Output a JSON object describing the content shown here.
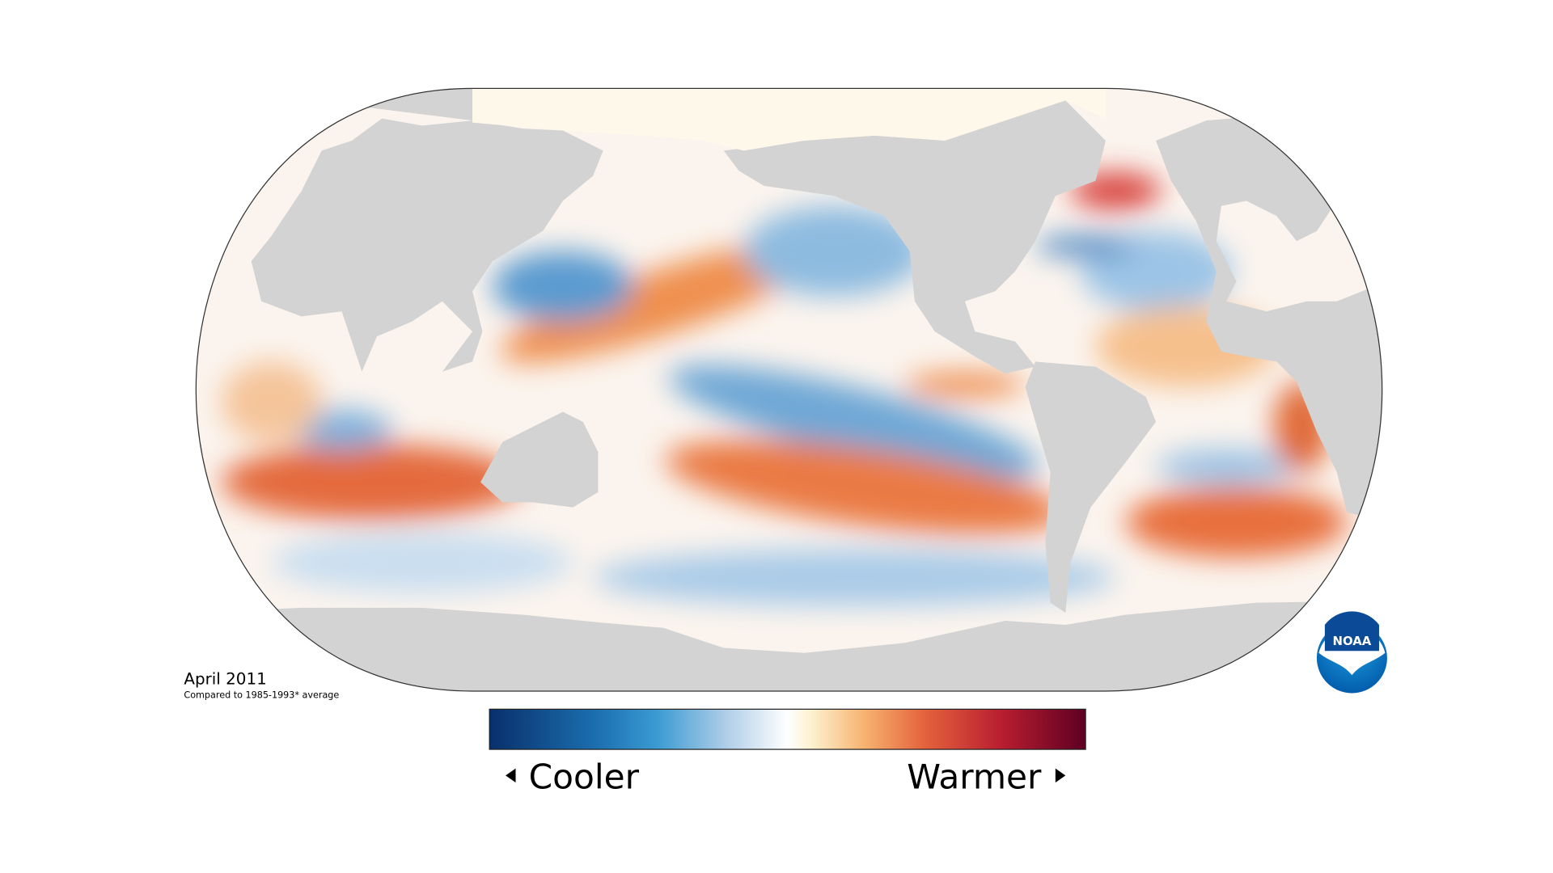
{
  "map": {
    "date_label": "April 2011",
    "baseline_note": "Compared to 1985-1993* average"
  },
  "legend": {
    "low_label": "Cooler",
    "high_label": "Warmer"
  },
  "logo": {
    "text": "NOAA"
  }
}
